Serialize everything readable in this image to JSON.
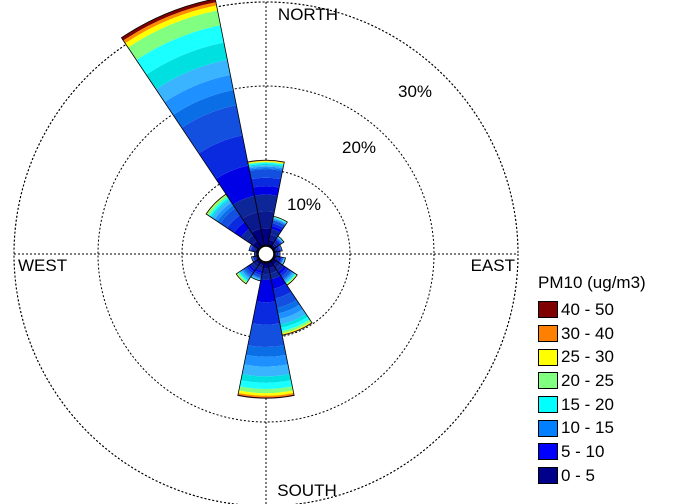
{
  "chart_data": {
    "type": "windrose",
    "directions": [
      "N",
      "NNE",
      "NE",
      "ENE",
      "E",
      "ESE",
      "SE",
      "SSE",
      "S",
      "SSW",
      "SW",
      "WSW",
      "W",
      "WNW",
      "NW",
      "NNW"
    ],
    "direction_labels": {
      "north": "NORTH",
      "east": "EAST",
      "south": "SOUTH",
      "west": "WEST"
    },
    "ring_labels": [
      "10%",
      "20%",
      "30%"
    ],
    "ring_values": [
      10,
      20,
      30
    ],
    "r_max": 30,
    "legend_title": "PM10 (ug/m3)",
    "bins": [
      {
        "label": "40 - 50",
        "color": "#7f0000"
      },
      {
        "label": "30 - 40",
        "color": "#ff7f00"
      },
      {
        "label": "25 - 30",
        "color": "#ffff00"
      },
      {
        "label": "20 - 25",
        "color": "#80ff80"
      },
      {
        "label": "15 - 20",
        "color": "#00ffff"
      },
      {
        "label": "10 - 15",
        "color": "#0080ff"
      },
      {
        "label": "5 - 10",
        "color": "#0000ff"
      },
      {
        "label": "0 - 5",
        "color": "#00008b"
      }
    ],
    "bin_shades": {
      "0 - 5": [
        "#000080",
        "#0a1a8c",
        "#0d2799"
      ],
      "5 - 10": [
        "#0000e6",
        "#0a2ae0",
        "#1450e0"
      ],
      "10 - 15": [
        "#0a6ee6",
        "#1e90ff",
        "#3ab4ff"
      ],
      "15 - 20": [
        "#00e0e0",
        "#1affff"
      ],
      "20 - 25": [
        "#80ff80"
      ],
      "25 - 30": [
        "#ffff00"
      ],
      "30 - 40": [
        "#ff8c00"
      ],
      "40 - 50": [
        "#7f0000"
      ]
    },
    "frequencies_percent": {
      "N": [
        6.0,
        3.0,
        0.5,
        0.3,
        0.1,
        0.1,
        0.1,
        0.0
      ],
      "NNE": [
        2.0,
        1.0,
        0.3,
        0.1,
        0.1,
        0.0,
        0.0,
        0.0
      ],
      "NE": [
        0.8,
        0.4,
        0.2,
        0.1,
        0.0,
        0.0,
        0.0,
        0.0
      ],
      "ENE": [
        0.5,
        0.3,
        0.1,
        0.0,
        0.0,
        0.0,
        0.0,
        0.0
      ],
      "E": [
        0.3,
        0.2,
        0.1,
        0.0,
        0.0,
        0.0,
        0.0,
        0.0
      ],
      "ESE": [
        0.6,
        0.4,
        0.2,
        0.1,
        0.0,
        0.0,
        0.0,
        0.0
      ],
      "SE": [
        1.5,
        1.0,
        0.5,
        0.2,
        0.1,
        0.1,
        0.0,
        0.0
      ],
      "SSE": [
        2.0,
        3.5,
        2.0,
        0.8,
        0.3,
        0.1,
        0.1,
        0.0
      ],
      "S": [
        2.0,
        8.0,
        3.5,
        1.5,
        0.5,
        0.3,
        0.2,
        0.1
      ],
      "SSW": [
        1.0,
        0.8,
        0.3,
        0.1,
        0.0,
        0.0,
        0.0,
        0.0
      ],
      "SW": [
        1.2,
        0.8,
        0.6,
        0.3,
        0.2,
        0.1,
        0.0,
        0.0
      ],
      "WSW": [
        0.4,
        0.2,
        0.1,
        0.0,
        0.0,
        0.0,
        0.0,
        0.0
      ],
      "W": [
        0.2,
        0.1,
        0.0,
        0.0,
        0.0,
        0.0,
        0.0,
        0.0
      ],
      "WNW": [
        0.6,
        0.3,
        0.1,
        0.0,
        0.0,
        0.0,
        0.0,
        0.0
      ],
      "NW": [
        2.5,
        3.0,
        1.2,
        0.4,
        0.3,
        0.1,
        0.0,
        0.0
      ],
      "NNW": [
        6.0,
        11.0,
        5.5,
        4.2,
        1.8,
        0.6,
        0.4,
        0.4
      ]
    }
  }
}
